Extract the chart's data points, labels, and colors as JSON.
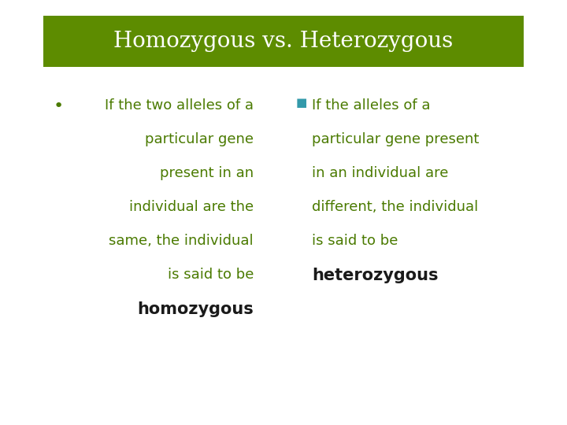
{
  "title": "Homozygous vs. Heterozygous",
  "title_color": "#ffffff",
  "title_bg_color": "#5d8c00",
  "bg_color": "#ffffff",
  "green_color": "#4a7a00",
  "black_color": "#1a1a1a",
  "teal_color": "#3399aa",
  "left_bullet": "•",
  "right_bullet": "■",
  "left_lines": [
    "If the two alleles of a",
    "particular gene",
    "present in an",
    "individual are the",
    "same, the individual",
    "is said to be"
  ],
  "left_bold": "homozygous",
  "right_lines": [
    "If the alleles of a",
    "particular gene present",
    "in an individual are",
    "different, the individual",
    "is said to be"
  ],
  "right_bold": "heterozygous",
  "title_fontsize": 20,
  "body_fontsize": 13,
  "bold_fontsize": 15
}
